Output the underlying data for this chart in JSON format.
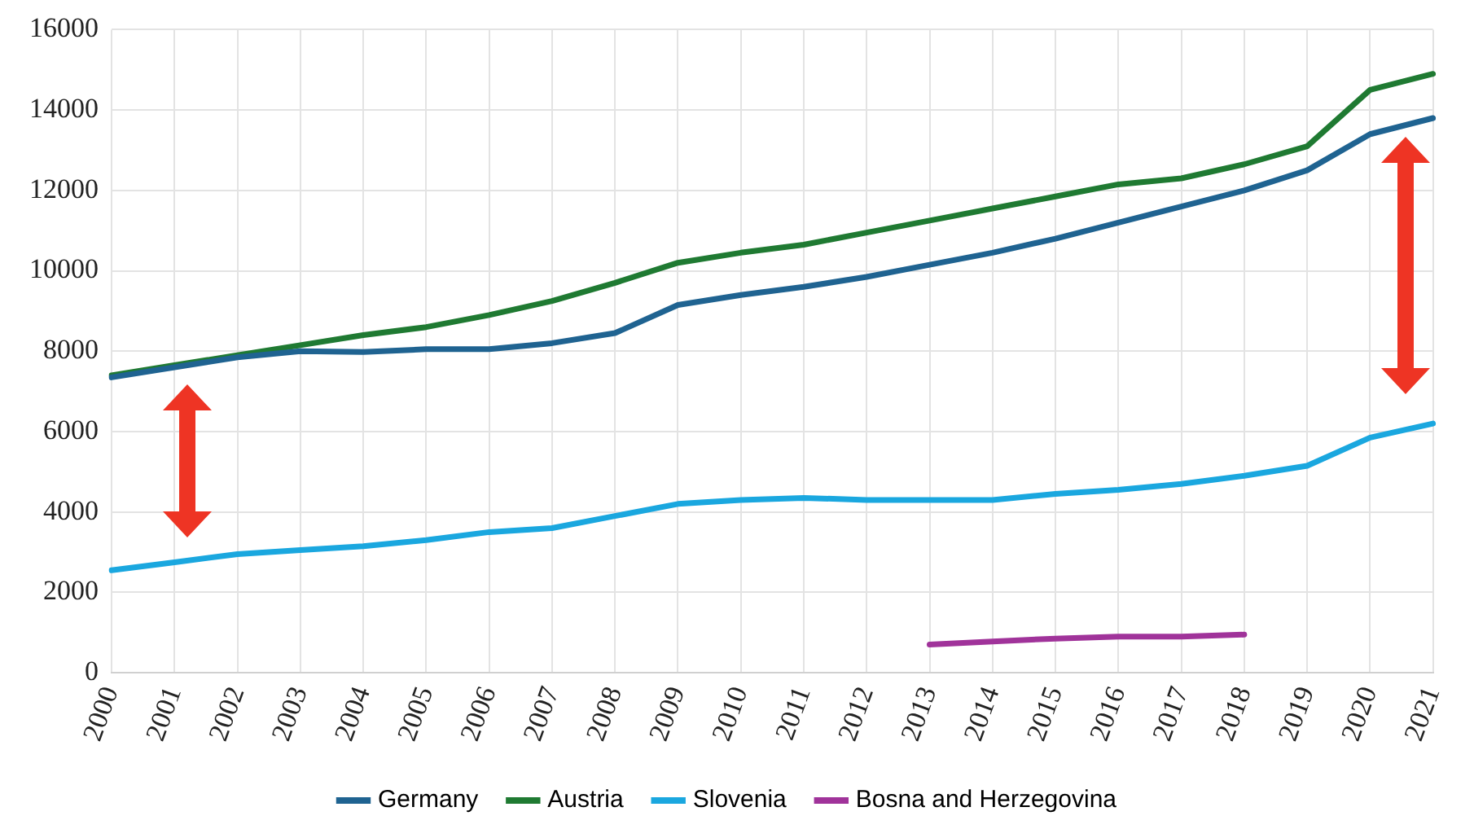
{
  "chart_data": {
    "type": "line",
    "categories": [
      "2000",
      "2001",
      "2002",
      "2003",
      "2004",
      "2005",
      "2006",
      "2007",
      "2008",
      "2009",
      "2010",
      "2011",
      "2012",
      "2013",
      "2014",
      "2015",
      "2016",
      "2017",
      "2018",
      "2019",
      "2020",
      "2021"
    ],
    "series": [
      {
        "name": "Germany",
        "color": "#1f6391",
        "values": [
          7350,
          7600,
          7850,
          8000,
          7980,
          8050,
          8050,
          8200,
          8450,
          9150,
          9400,
          9600,
          9850,
          10150,
          10450,
          10800,
          11200,
          11600,
          12000,
          12500,
          13400,
          13800
        ]
      },
      {
        "name": "Austria",
        "color": "#1f7a32",
        "values": [
          7400,
          7650,
          7900,
          8150,
          8400,
          8600,
          8900,
          9250,
          9700,
          10200,
          10450,
          10650,
          10950,
          11250,
          11550,
          11850,
          12150,
          12300,
          12650,
          13100,
          14500,
          14900
        ]
      },
      {
        "name": "Slovenia",
        "color": "#1aa7df",
        "values": [
          2550,
          2750,
          2950,
          3050,
          3150,
          3300,
          3500,
          3600,
          3900,
          4200,
          4300,
          4350,
          4300,
          4300,
          4300,
          4450,
          4550,
          4700,
          4900,
          5150,
          5850,
          6200
        ]
      },
      {
        "name": "Bosna and Herzegovina",
        "color": "#a0339a",
        "values": [
          null,
          null,
          null,
          null,
          null,
          null,
          null,
          null,
          null,
          null,
          null,
          null,
          null,
          700,
          780,
          850,
          900,
          900,
          950,
          null,
          null,
          null
        ]
      }
    ],
    "ylim": [
      0,
      16000
    ],
    "yticks": [
      0,
      2000,
      4000,
      6000,
      8000,
      10000,
      12000,
      14000,
      16000
    ],
    "grid": true,
    "legend": "bottom",
    "marker": "none",
    "line_style": "solid"
  }
}
